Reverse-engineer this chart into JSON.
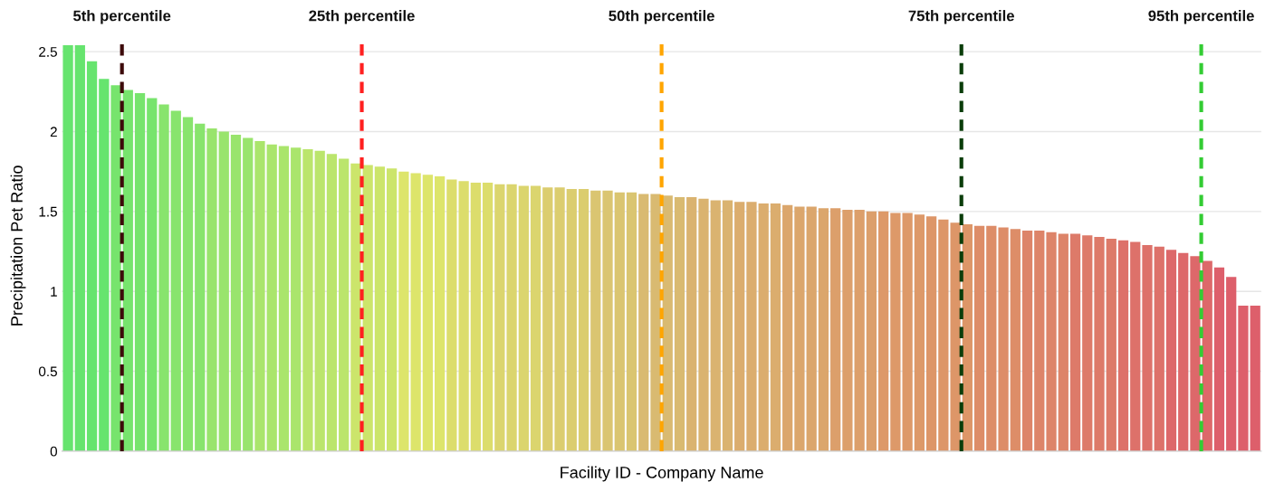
{
  "chart_data": {
    "type": "bar",
    "xlabel": "Facility ID - Company Name",
    "ylabel": "Precipitation Pet Ratio",
    "x": [
      1,
      2,
      3,
      4,
      5,
      6,
      7,
      8,
      9,
      10,
      11,
      12,
      13,
      14,
      15,
      16,
      17,
      18,
      19,
      20,
      21,
      22,
      23,
      24,
      25,
      26,
      27,
      28,
      29,
      30,
      31,
      32,
      33,
      34,
      35,
      36,
      37,
      38,
      39,
      40,
      41,
      42,
      43,
      44,
      45,
      46,
      47,
      48,
      49,
      50,
      51,
      52,
      53,
      54,
      55,
      56,
      57,
      58,
      59,
      60,
      61,
      62,
      63,
      64,
      65,
      66,
      67,
      68,
      69,
      70,
      71,
      72,
      73,
      74,
      75,
      76,
      77,
      78,
      79,
      80,
      81,
      82,
      83,
      84,
      85,
      86,
      87,
      88,
      89,
      90,
      91,
      92,
      93,
      94,
      95,
      96,
      97,
      98,
      99,
      100
    ],
    "values": [
      2.54,
      2.54,
      2.44,
      2.33,
      2.29,
      2.26,
      2.24,
      2.21,
      2.17,
      2.13,
      2.09,
      2.05,
      2.02,
      2.0,
      1.98,
      1.96,
      1.94,
      1.92,
      1.91,
      1.9,
      1.89,
      1.88,
      1.86,
      1.83,
      1.8,
      1.79,
      1.78,
      1.77,
      1.75,
      1.74,
      1.73,
      1.72,
      1.7,
      1.69,
      1.68,
      1.68,
      1.67,
      1.67,
      1.66,
      1.66,
      1.65,
      1.65,
      1.64,
      1.64,
      1.63,
      1.63,
      1.62,
      1.62,
      1.61,
      1.61,
      1.6,
      1.59,
      1.59,
      1.58,
      1.57,
      1.57,
      1.56,
      1.56,
      1.55,
      1.55,
      1.54,
      1.53,
      1.53,
      1.52,
      1.52,
      1.51,
      1.51,
      1.5,
      1.5,
      1.49,
      1.49,
      1.48,
      1.47,
      1.45,
      1.43,
      1.42,
      1.41,
      1.41,
      1.4,
      1.39,
      1.38,
      1.38,
      1.37,
      1.36,
      1.36,
      1.35,
      1.34,
      1.33,
      1.32,
      1.31,
      1.29,
      1.28,
      1.26,
      1.24,
      1.22,
      1.19,
      1.15,
      1.09,
      0.91,
      0.91
    ],
    "colors": [
      "#66e46e",
      "#66e46e",
      "#66e46e",
      "#66e46e",
      "#77e46d",
      "#77e46d",
      "#77e46d",
      "#77e46d",
      "#88e46d",
      "#88e46d",
      "#88e46d",
      "#88e46d",
      "#99e46d",
      "#99e46d",
      "#99e46d",
      "#99e46d",
      "#aae56c",
      "#aae56c",
      "#aae56c",
      "#aae56c",
      "#bbe56c",
      "#bbe56c",
      "#bbe56c",
      "#bbe56c",
      "#cce56b",
      "#cce56b",
      "#cce56b",
      "#cce56b",
      "#dde56b",
      "#dde56b",
      "#dde56b",
      "#dde56b",
      "#dcdd6c",
      "#dcdd6c",
      "#dcdd6c",
      "#dcdd6c",
      "#dbd56e",
      "#dbd56e",
      "#dbd56e",
      "#dbd56e",
      "#dbcd6f",
      "#dbcd6f",
      "#dbcd6f",
      "#dbcd6f",
      "#dac571",
      "#dac571",
      "#dac571",
      "#dac571",
      "#d9ba71",
      "#d9ba71",
      "#d9ba71",
      "#d9ba71",
      "#dab370",
      "#dab370",
      "#dab370",
      "#dab370",
      "#dbad6e",
      "#dbad6e",
      "#dbad6e",
      "#dbad6e",
      "#dba66c",
      "#dba66c",
      "#dba66c",
      "#dba66c",
      "#dc9f6b",
      "#dc9f6b",
      "#dc9f6b",
      "#dc9f6b",
      "#dd9969",
      "#dd9969",
      "#dd9969",
      "#dd9969",
      "#dd9668",
      "#dd9668",
      "#dd9668",
      "#dd9668",
      "#dd8d68",
      "#dd8d68",
      "#dd8d68",
      "#dd8d68",
      "#dd8469",
      "#dd8469",
      "#dd8469",
      "#dd8469",
      "#dd7a69",
      "#dd7a69",
      "#dd7a69",
      "#dd7a69",
      "#dd716a",
      "#dd716a",
      "#dd716a",
      "#dd716a",
      "#dd686a",
      "#dd686a",
      "#dd686a",
      "#dd686a",
      "#dd5f6b",
      "#dd5f6b",
      "#dd5f6b",
      "#dd5f6b"
    ],
    "xlim": [
      0.5,
      100.5
    ],
    "ylim": [
      0,
      2.57
    ],
    "yticks": [
      0,
      0.5,
      1,
      1.5,
      2,
      2.5
    ],
    "tick_labels": "y",
    "grid": "y",
    "ref_lines": [
      {
        "axis": "x",
        "value": 5.5,
        "label": "5th percentile",
        "color": "#3d0a0a",
        "line_style": "dashed"
      },
      {
        "axis": "x",
        "value": 25.5,
        "label": "25th percentile",
        "color": "#ff2020",
        "line_style": "dashed"
      },
      {
        "axis": "x",
        "value": 50.5,
        "label": "50th percentile",
        "color": "#ffa500",
        "line_style": "dashed"
      },
      {
        "axis": "x",
        "value": 75.5,
        "label": "75th percentile",
        "color": "#0a3d0a",
        "line_style": "dashed"
      },
      {
        "axis": "x",
        "value": 95.5,
        "label": "95th percentile",
        "color": "#33cc33",
        "line_style": "dashed"
      }
    ]
  }
}
